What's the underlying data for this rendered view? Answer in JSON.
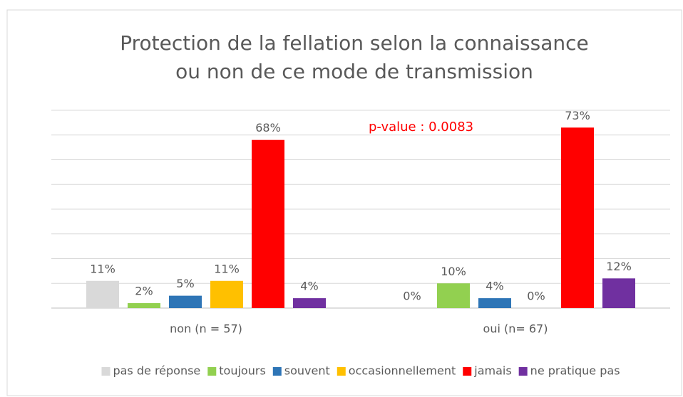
{
  "chart_data": {
    "type": "bar",
    "title": [
      "Protection de la fellation selon la connaissance",
      "ou non de ce mode de transmission"
    ],
    "annotation": "p-value : 0.0083",
    "categories": [
      "non (n = 57)",
      "oui (n= 67)"
    ],
    "series": [
      {
        "name": "pas de réponse",
        "color": "#d9d9d9",
        "values": [
          11,
          0
        ],
        "value_labels": [
          "11%",
          "0%"
        ]
      },
      {
        "name": "toujours",
        "color": "#92d050",
        "values": [
          2,
          10
        ],
        "value_labels": [
          "2%",
          "10%"
        ]
      },
      {
        "name": "souvent",
        "color": "#2e75b6",
        "values": [
          5,
          4
        ],
        "value_labels": [
          "5%",
          "4%"
        ]
      },
      {
        "name": "occasionnellement",
        "color": "#ffc000",
        "values": [
          11,
          0
        ],
        "value_labels": [
          "11%",
          "0%"
        ]
      },
      {
        "name": "jamais",
        "color": "#ff0000",
        "values": [
          68,
          73
        ],
        "value_labels": [
          "68%",
          "73%"
        ]
      },
      {
        "name": "ne pratique pas",
        "color": "#7030a0",
        "values": [
          4,
          12
        ],
        "value_labels": [
          "4%",
          "12%"
        ]
      }
    ],
    "ylim": [
      0,
      80
    ],
    "yticks": [
      0,
      10,
      20,
      30,
      40,
      50,
      60,
      70,
      80
    ],
    "grid": true,
    "legend": "bottom"
  }
}
